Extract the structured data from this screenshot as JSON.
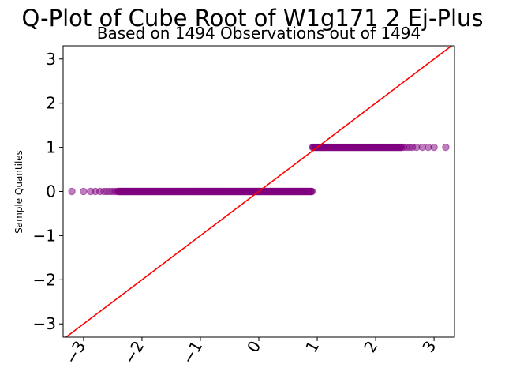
{
  "chart_data": {
    "type": "scatter",
    "title": "Q-Plot of Cube Root of W1g171 2 Ej-Plus",
    "subtitle": "Based on 1494 Observations out of 1494",
    "xlabel": "",
    "ylabel": "Sample Quantiles",
    "xlim": [
      -3.35,
      3.35
    ],
    "ylim": [
      -3.3,
      3.3
    ],
    "xticks": [
      -3,
      -2,
      -1,
      0,
      1,
      2,
      3
    ],
    "xtick_labels": [
      "−3",
      "−2",
      "−1",
      "0",
      "1",
      "2",
      "3"
    ],
    "yticks": [
      -3,
      -2,
      -1,
      0,
      1,
      2,
      3
    ],
    "ytick_labels": [
      "−3",
      "−2",
      "−1",
      "0",
      "1",
      "2",
      "3"
    ],
    "grid": false,
    "point_color": "#800080",
    "line_color": "#ff0000",
    "reference_line": {
      "x": [
        -3.35,
        3.35
      ],
      "y": [
        -3.35,
        3.35
      ]
    },
    "series": [
      {
        "values_lower": {
          "y": 0,
          "sparse_x": [
            -3.2,
            -3.0,
            -2.88,
            -2.8,
            -2.72,
            -2.65,
            -2.6,
            -2.55,
            -2.5,
            -2.46,
            -2.42
          ],
          "dense_range": [
            -2.4,
            0.92
          ]
        },
        "values_upper": {
          "y": 1,
          "dense_range": [
            0.92,
            2.45
          ],
          "sparse_x": [
            2.48,
            2.53,
            2.58,
            2.63,
            2.7,
            2.8,
            2.9,
            3.0,
            3.2
          ]
        }
      }
    ]
  }
}
